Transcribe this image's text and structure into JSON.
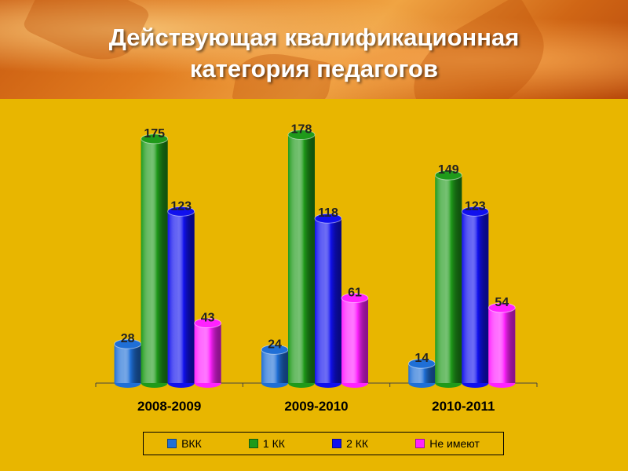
{
  "header": {
    "title_line1": "Действующая квалификационная",
    "title_line2": "категория педагогов"
  },
  "chart_data": {
    "type": "bar",
    "categories": [
      "2008-2009",
      "2009-2010",
      "2010-2011"
    ],
    "series": [
      {
        "name": "ВКК",
        "values": [
          28,
          24,
          14
        ],
        "color": "#1f6fd6"
      },
      {
        "name": "1 КК",
        "values": [
          175,
          178,
          149
        ],
        "color": "#1f9a1a"
      },
      {
        "name": "2 КК",
        "values": [
          123,
          118,
          123
        ],
        "color": "#1010ee"
      },
      {
        "name": "Не имеют",
        "values": [
          43,
          61,
          54
        ],
        "color": "#ff22ff"
      }
    ],
    "title": "Действующая квалификационная категория педагогов",
    "ylim": [
      0,
      180
    ],
    "grid": false,
    "legend": "bottom"
  }
}
